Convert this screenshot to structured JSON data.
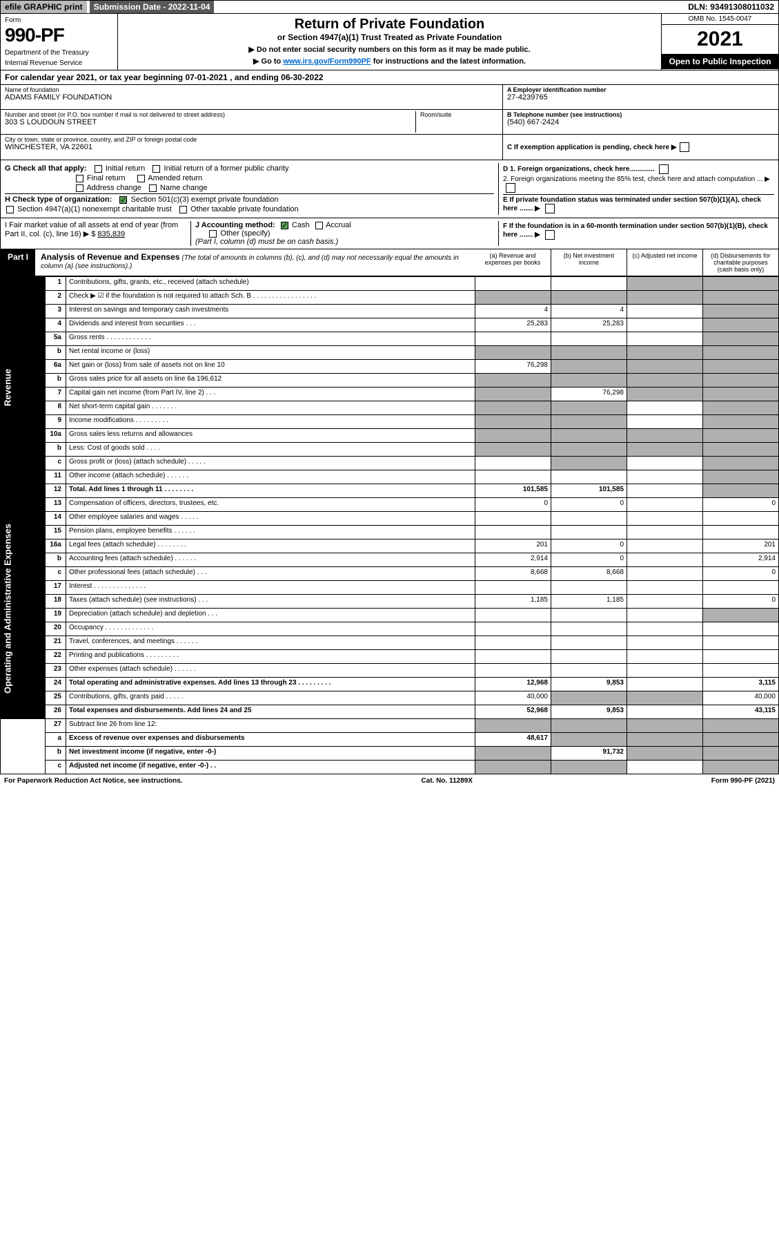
{
  "top": {
    "efile": "efile GRAPHIC print",
    "submission": "Submission Date - 2022-11-04",
    "dln": "DLN: 93491308011032"
  },
  "header": {
    "form_label": "Form",
    "form_number": "990-PF",
    "dept1": "Department of the Treasury",
    "dept2": "Internal Revenue Service",
    "title": "Return of Private Foundation",
    "subtitle": "or Section 4947(a)(1) Trust Treated as Private Foundation",
    "note1": "▶ Do not enter social security numbers on this form as it may be made public.",
    "note2_pre": "▶ Go to ",
    "note2_link": "www.irs.gov/Form990PF",
    "note2_post": " for instructions and the latest information.",
    "omb": "OMB No. 1545-0047",
    "year": "2021",
    "open": "Open to Public Inspection"
  },
  "calendar": "For calendar year 2021, or tax year beginning 07-01-2021          , and ending 06-30-2022",
  "info": {
    "name_label": "Name of foundation",
    "name": "ADAMS FAMILY FOUNDATION",
    "addr_label": "Number and street (or P.O. box number if mail is not delivered to street address)",
    "addr": "303 S LOUDOUN STREET",
    "room_label": "Room/suite",
    "city_label": "City or town, state or province, country, and ZIP or foreign postal code",
    "city": "WINCHESTER, VA  22601",
    "ein_label": "A Employer identification number",
    "ein": "27-4239765",
    "phone_label": "B Telephone number (see instructions)",
    "phone": "(540) 667-2424",
    "c_label": "C If exemption application is pending, check here ▶"
  },
  "g": {
    "label": "G Check all that apply:",
    "initial": "Initial return",
    "initial_former": "Initial return of a former public charity",
    "final": "Final return",
    "amended": "Amended return",
    "address": "Address change",
    "name_change": "Name change"
  },
  "h": {
    "label": "H Check type of organization:",
    "opt1": "Section 501(c)(3) exempt private foundation",
    "opt2": "Section 4947(a)(1) nonexempt charitable trust",
    "opt3": "Other taxable private foundation"
  },
  "i": {
    "label": "I Fair market value of all assets at end of year (from Part II, col. (c), line 16) ▶ $",
    "value": "835,839"
  },
  "j": {
    "label": "J Accounting method:",
    "cash": "Cash",
    "accrual": "Accrual",
    "other": "Other (specify)",
    "note": "(Part I, column (d) must be on cash basis.)"
  },
  "d": {
    "d1": "D 1. Foreign organizations, check here.............",
    "d2": "2. Foreign organizations meeting the 85% test, check here and attach computation ...  ▶"
  },
  "e": "E  If private foundation status was terminated under section 507(b)(1)(A), check here .......  ▶",
  "f": "F  If the foundation is in a 60-month termination under section 507(b)(1)(B), check here .......  ▶",
  "part1": {
    "label": "Part I",
    "title": "Analysis of Revenue and Expenses",
    "note": "(The total of amounts in columns (b), (c), and (d) may not necessarily equal the amounts in column (a) (see instructions).)",
    "col_a": "(a) Revenue and expenses per books",
    "col_b": "(b) Net investment income",
    "col_c": "(c) Adjusted net income",
    "col_d": "(d) Disbursements for charitable purposes (cash basis only)"
  },
  "sidebars": {
    "revenue": "Revenue",
    "expenses": "Operating and Administrative Expenses"
  },
  "rows": [
    {
      "n": "1",
      "d": "Contributions, gifts, grants, etc., received (attach schedule)",
      "a": "",
      "b": "",
      "c": "grey",
      "dd": "grey"
    },
    {
      "n": "2",
      "d": "Check ▶ ☑ if the foundation is not required to attach Sch. B  .  .  .  .  .  .  .  .  .  .  .  .  .  .  .  .  .",
      "a": "grey",
      "b": "grey",
      "c": "grey",
      "dd": "grey"
    },
    {
      "n": "3",
      "d": "Interest on savings and temporary cash investments",
      "a": "4",
      "b": "4",
      "c": "",
      "dd": "grey"
    },
    {
      "n": "4",
      "d": "Dividends and interest from securities  .   .   .",
      "a": "25,283",
      "b": "25,283",
      "c": "",
      "dd": "grey"
    },
    {
      "n": "5a",
      "d": "Gross rents  .  .  .  .  .  .  .  .  .  .  .  .",
      "a": "",
      "b": "",
      "c": "",
      "dd": "grey"
    },
    {
      "n": "b",
      "d": "Net rental income or (loss)",
      "a": "grey",
      "b": "grey",
      "c": "grey",
      "dd": "grey"
    },
    {
      "n": "6a",
      "d": "Net gain or (loss) from sale of assets not on line 10",
      "a": "76,298",
      "b": "grey",
      "c": "grey",
      "dd": "grey"
    },
    {
      "n": "b",
      "d": "Gross sales price for all assets on line 6a          196,612",
      "a": "grey",
      "b": "grey",
      "c": "grey",
      "dd": "grey"
    },
    {
      "n": "7",
      "d": "Capital gain net income (from Part IV, line 2)   .   .   .",
      "a": "grey",
      "b": "76,298",
      "c": "grey",
      "dd": "grey"
    },
    {
      "n": "8",
      "d": "Net short-term capital gain  .  .  .  .  .  .  .",
      "a": "grey",
      "b": "grey",
      "c": "",
      "dd": "grey"
    },
    {
      "n": "9",
      "d": "Income modifications  .  .  .  .  .  .  .  .  .",
      "a": "grey",
      "b": "grey",
      "c": "",
      "dd": "grey"
    },
    {
      "n": "10a",
      "d": "Gross sales less returns and allowances",
      "a": "grey",
      "b": "grey",
      "c": "grey",
      "dd": "grey"
    },
    {
      "n": "b",
      "d": "Less: Cost of goods sold   .   .   .   .",
      "a": "grey",
      "b": "grey",
      "c": "grey",
      "dd": "grey"
    },
    {
      "n": "c",
      "d": "Gross profit or (loss) (attach schedule)   .   .   .   .   .",
      "a": "",
      "b": "grey",
      "c": "",
      "dd": "grey"
    },
    {
      "n": "11",
      "d": "Other income (attach schedule)   .   .   .   .   .   .",
      "a": "",
      "b": "",
      "c": "",
      "dd": "grey"
    },
    {
      "n": "12",
      "d": "Total. Add lines 1 through 11  .  .  .  .  .  .  .  .",
      "a": "101,585",
      "b": "101,585",
      "c": "",
      "dd": "grey",
      "bold": true
    }
  ],
  "exp_rows": [
    {
      "n": "13",
      "d": "Compensation of officers, directors, trustees, etc.",
      "a": "0",
      "b": "0",
      "c": "",
      "dd": "0"
    },
    {
      "n": "14",
      "d": "Other employee salaries and wages  .  .  .  .  .",
      "a": "",
      "b": "",
      "c": "",
      "dd": ""
    },
    {
      "n": "15",
      "d": "Pension plans, employee benefits  .  .  .  .  .  .",
      "a": "",
      "b": "",
      "c": "",
      "dd": ""
    },
    {
      "n": "16a",
      "d": "Legal fees (attach schedule)  .  .  .  .  .  .  .  .",
      "a": "201",
      "b": "0",
      "c": "",
      "dd": "201"
    },
    {
      "n": "b",
      "d": "Accounting fees (attach schedule)  .  .  .  .  .  .",
      "a": "2,914",
      "b": "0",
      "c": "",
      "dd": "2,914"
    },
    {
      "n": "c",
      "d": "Other professional fees (attach schedule)   .   .   .",
      "a": "8,668",
      "b": "8,668",
      "c": "",
      "dd": "0"
    },
    {
      "n": "17",
      "d": "Interest  .  .  .  .  .  .  .  .  .  .  .  .  .  .",
      "a": "",
      "b": "",
      "c": "",
      "dd": ""
    },
    {
      "n": "18",
      "d": "Taxes (attach schedule) (see instructions)   .   .   .",
      "a": "1,185",
      "b": "1,185",
      "c": "",
      "dd": "0"
    },
    {
      "n": "19",
      "d": "Depreciation (attach schedule) and depletion   .   .   .",
      "a": "",
      "b": "",
      "c": "",
      "dd": "grey"
    },
    {
      "n": "20",
      "d": "Occupancy  .  .  .  .  .  .  .  .  .  .  .  .  .",
      "a": "",
      "b": "",
      "c": "",
      "dd": ""
    },
    {
      "n": "21",
      "d": "Travel, conferences, and meetings  .  .  .  .  .  .",
      "a": "",
      "b": "",
      "c": "",
      "dd": ""
    },
    {
      "n": "22",
      "d": "Printing and publications  .  .  .  .  .  .  .  .  .",
      "a": "",
      "b": "",
      "c": "",
      "dd": ""
    },
    {
      "n": "23",
      "d": "Other expenses (attach schedule)  .  .  .  .  .  .",
      "a": "",
      "b": "",
      "c": "",
      "dd": ""
    },
    {
      "n": "24",
      "d": "Total operating and administrative expenses. Add lines 13 through 23  .  .  .  .  .  .  .  .  .",
      "a": "12,968",
      "b": "9,853",
      "c": "",
      "dd": "3,115",
      "bold": true
    },
    {
      "n": "25",
      "d": "Contributions, gifts, grants paid   .   .   .   .   .",
      "a": "40,000",
      "b": "grey",
      "c": "grey",
      "dd": "40,000"
    },
    {
      "n": "26",
      "d": "Total expenses and disbursements. Add lines 24 and 25",
      "a": "52,968",
      "b": "9,853",
      "c": "",
      "dd": "43,115",
      "bold": true
    }
  ],
  "final_rows": [
    {
      "n": "27",
      "d": "Subtract line 26 from line 12:",
      "a": "grey",
      "b": "grey",
      "c": "grey",
      "dd": "grey"
    },
    {
      "n": "a",
      "d": "Excess of revenue over expenses and disbursements",
      "a": "48,617",
      "b": "grey",
      "c": "grey",
      "dd": "grey",
      "bold": true
    },
    {
      "n": "b",
      "d": "Net investment income (if negative, enter -0-)",
      "a": "grey",
      "b": "91,732",
      "c": "grey",
      "dd": "grey",
      "bold": true
    },
    {
      "n": "c",
      "d": "Adjusted net income (if negative, enter -0-)   .   .",
      "a": "grey",
      "b": "grey",
      "c": "",
      "dd": "grey",
      "bold": true
    }
  ],
  "footer": {
    "left": "For Paperwork Reduction Act Notice, see instructions.",
    "mid": "Cat. No. 11289X",
    "right": "Form 990-PF (2021)"
  }
}
